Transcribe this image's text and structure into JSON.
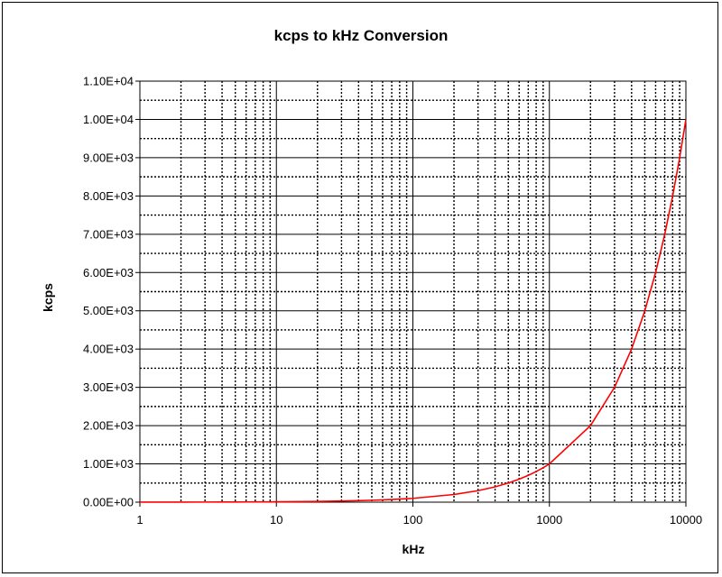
{
  "chart_data": {
    "type": "line",
    "title": "kcps to kHz Conversion",
    "xlabel": "kHz",
    "ylabel": "kcps",
    "xscale": "log",
    "xlim": [
      1,
      10000
    ],
    "ylim": [
      0,
      11000
    ],
    "x_tick_labels": [
      "1",
      "10",
      "100",
      "1000",
      "10000"
    ],
    "x_ticks": [
      1,
      10,
      100,
      1000,
      10000
    ],
    "y_ticks": [
      0,
      1000,
      2000,
      3000,
      4000,
      5000,
      6000,
      7000,
      8000,
      9000,
      10000,
      11000
    ],
    "y_tick_labels": [
      "0.00E+00",
      "1.00E+03",
      "2.00E+03",
      "3.00E+03",
      "4.00E+03",
      "5.00E+03",
      "6.00E+03",
      "7.00E+03",
      "8.00E+03",
      "9.00E+03",
      "1.00E+04",
      "1.10E+04"
    ],
    "grid": true,
    "legend": "none",
    "series": [
      {
        "name": "kcps",
        "color": "#ff0000",
        "x": [
          1,
          2,
          3,
          4,
          5,
          6,
          7,
          8,
          9,
          10,
          20,
          30,
          40,
          50,
          60,
          70,
          80,
          90,
          100,
          200,
          300,
          400,
          500,
          600,
          700,
          800,
          900,
          1000,
          2000,
          3000,
          4000,
          5000,
          6000,
          7000,
          8000,
          9000,
          10000
        ],
        "values": [
          1,
          2,
          3,
          4,
          5,
          6,
          7,
          8,
          9,
          10,
          20,
          30,
          40,
          50,
          60,
          70,
          80,
          90,
          100,
          200,
          300,
          400,
          500,
          600,
          700,
          800,
          900,
          1000,
          2000,
          3000,
          4000,
          5000,
          6000,
          7000,
          8000,
          9000,
          10000
        ]
      }
    ]
  }
}
